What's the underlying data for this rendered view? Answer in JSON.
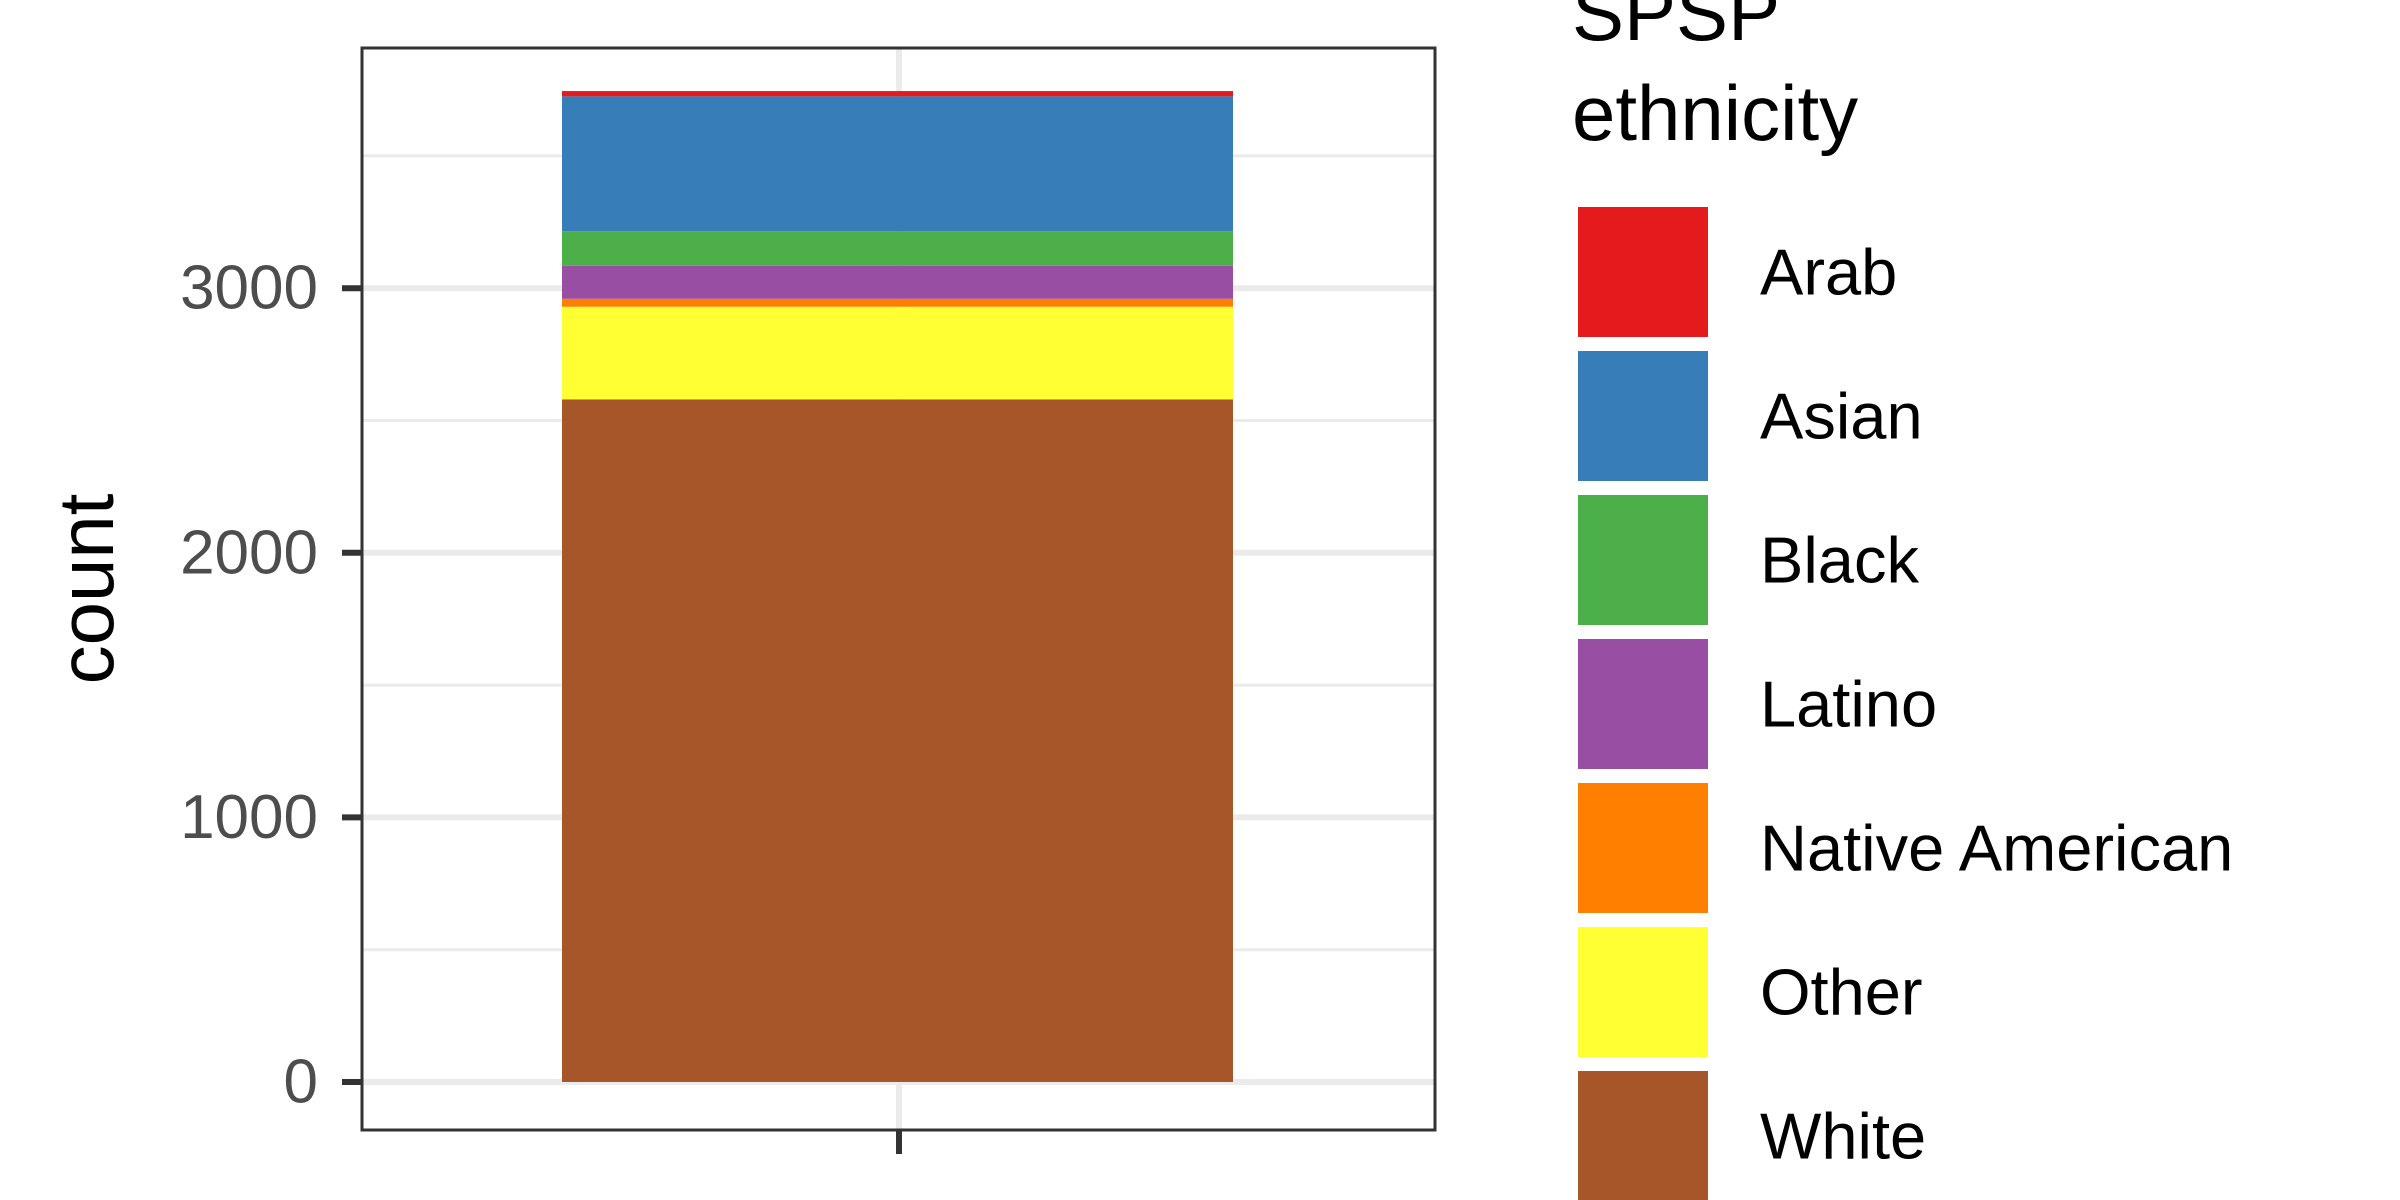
{
  "chart_data": {
    "type": "bar",
    "stacked": true,
    "categories": [
      ""
    ],
    "ylabel": "count",
    "xlabel": "",
    "ylim": [
      0,
      3900
    ],
    "yticks": [
      0,
      1000,
      2000,
      3000
    ],
    "grid": true,
    "legend": {
      "title": "SPSP ethnicity",
      "title_lines": [
        "SPSP",
        "ethnicity"
      ],
      "placement": "right"
    },
    "series": [
      {
        "name": "Arab",
        "values": [
          20
        ],
        "color": "#e41a1c"
      },
      {
        "name": "Asian",
        "values": [
          510
        ],
        "color": "#377eb8"
      },
      {
        "name": "Black",
        "values": [
          130
        ],
        "color": "#4daf4a"
      },
      {
        "name": "Latino",
        "values": [
          125
        ],
        "color": "#984ea3"
      },
      {
        "name": "Native American",
        "values": [
          30
        ],
        "color": "#ff7f00"
      },
      {
        "name": "Other",
        "values": [
          350
        ],
        "color": "#ffff33"
      },
      {
        "name": "White",
        "values": [
          2580
        ],
        "color": "#a65628"
      }
    ]
  }
}
